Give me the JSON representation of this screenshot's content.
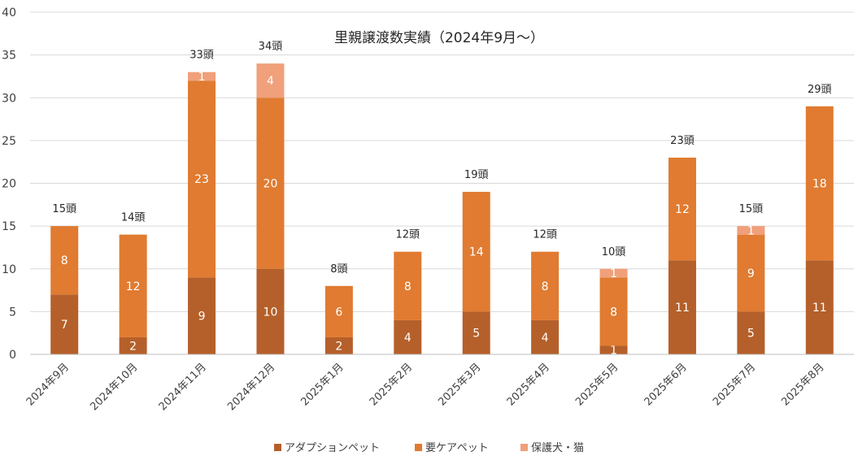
{
  "chart_data": {
    "type": "bar",
    "stacked": true,
    "title": "里親譲渡数実績（2024年9月〜）",
    "categories": [
      "2024年9月",
      "2024年10月",
      "2024年11月",
      "2024年12月",
      "2025年1月",
      "2025年2月",
      "2025年3月",
      "2025年4月",
      "2025年5月",
      "2025年6月",
      "2025年7月",
      "2025年8月"
    ],
    "series": [
      {
        "name": "アダプションペット",
        "color": "#B5602A",
        "values": [
          7,
          2,
          9,
          10,
          2,
          4,
          5,
          4,
          1,
          11,
          5,
          11
        ]
      },
      {
        "name": "要ケアペット",
        "color": "#E07B31",
        "values": [
          8,
          12,
          23,
          20,
          6,
          8,
          14,
          8,
          8,
          12,
          9,
          18
        ]
      },
      {
        "name": "保護犬・猫",
        "color": "#F0A07A",
        "values": [
          0,
          0,
          1,
          4,
          0,
          0,
          0,
          0,
          1,
          0,
          1,
          0
        ]
      }
    ],
    "totals": [
      "15頭",
      "14頭",
      "33頭",
      "34頭",
      "8頭",
      "12頭",
      "19頭",
      "12頭",
      "10頭",
      "23頭",
      "15頭",
      "29頭"
    ],
    "ylim": [
      0,
      40
    ],
    "yticks": [
      0,
      5,
      10,
      15,
      20,
      25,
      30,
      35,
      40
    ],
    "grid": true,
    "legend_position": "bottom"
  }
}
